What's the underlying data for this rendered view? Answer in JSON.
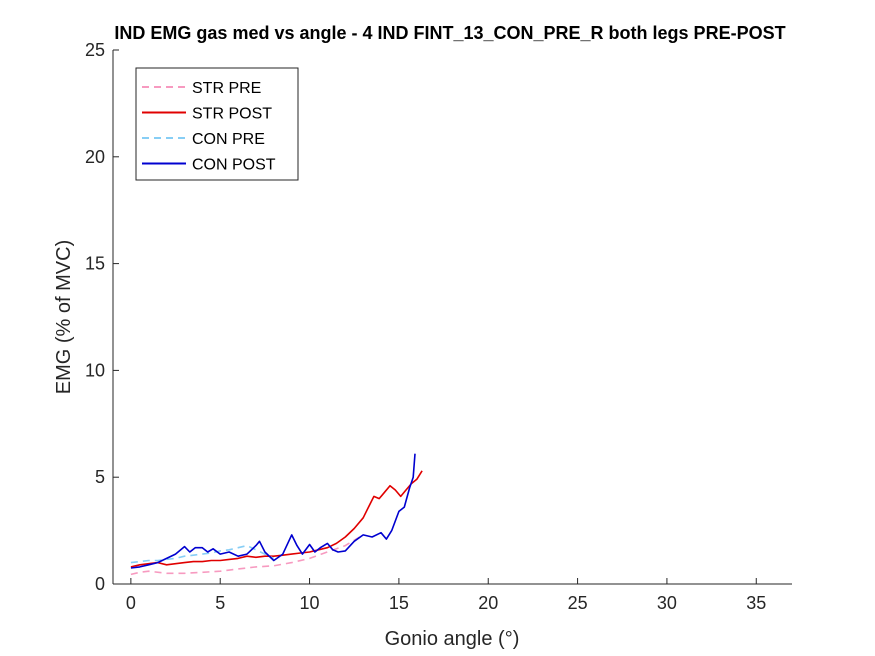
{
  "chart_data": {
    "type": "line",
    "title": "IND EMG gas med vs angle - 4 IND FINT_13_CON_PRE_R both legs PRE-POST",
    "xlabel": "Gonio angle (°)",
    "ylabel": "EMG (% of MVC)",
    "xlim": [
      -1,
      37
    ],
    "ylim": [
      0,
      25
    ],
    "xticks": [
      0,
      5,
      10,
      15,
      20,
      25,
      30,
      35
    ],
    "yticks": [
      0,
      5,
      10,
      15,
      20,
      25
    ],
    "xtick_labels": [
      "0",
      "5",
      "10",
      "15",
      "20",
      "25",
      "30",
      "35"
    ],
    "ytick_labels": [
      "0",
      "5",
      "10",
      "15",
      "20",
      "25"
    ],
    "grid": false,
    "legend_position": "top-left",
    "series": [
      {
        "name": "STR PRE",
        "color": "#f79ac0",
        "style": "dashed",
        "x": [
          0,
          0.5,
          1,
          2,
          3,
          4,
          5,
          6,
          7,
          8,
          9,
          10,
          11,
          12,
          12.8
        ],
        "y": [
          0.45,
          0.55,
          0.6,
          0.5,
          0.5,
          0.55,
          0.6,
          0.7,
          0.8,
          0.85,
          1.0,
          1.2,
          1.5,
          1.8,
          2.2
        ]
      },
      {
        "name": "STR POST",
        "color": "#e00000",
        "style": "solid",
        "x": [
          0,
          0.5,
          1,
          1.5,
          2,
          2.5,
          3,
          3.5,
          4,
          4.5,
          5,
          5.5,
          6,
          6.5,
          7,
          7.5,
          8,
          8.5,
          9,
          9.5,
          10,
          10.5,
          11,
          11.5,
          12,
          12.5,
          13,
          13.3,
          13.6,
          13.9,
          14.2,
          14.5,
          14.8,
          15.1,
          15.4,
          15.7,
          16.0,
          16.3
        ],
        "y": [
          0.8,
          0.9,
          0.95,
          1.0,
          0.9,
          0.95,
          1.0,
          1.05,
          1.05,
          1.1,
          1.1,
          1.15,
          1.2,
          1.3,
          1.25,
          1.3,
          1.3,
          1.35,
          1.4,
          1.45,
          1.5,
          1.6,
          1.7,
          1.9,
          2.2,
          2.6,
          3.1,
          3.6,
          4.1,
          4.0,
          4.3,
          4.6,
          4.4,
          4.1,
          4.4,
          4.7,
          4.9,
          5.3
        ]
      },
      {
        "name": "CON PRE",
        "color": "#87cef5",
        "style": "dashed",
        "x": [
          0,
          0.5,
          1,
          1.5,
          2,
          2.5,
          3,
          3.5,
          4,
          4.5,
          5,
          5.5,
          6,
          6.5,
          7,
          7.5,
          8
        ],
        "y": [
          1.0,
          1.05,
          1.1,
          1.1,
          1.15,
          1.2,
          1.3,
          1.35,
          1.4,
          1.45,
          1.55,
          1.6,
          1.7,
          1.8,
          1.6,
          1.4,
          1.2
        ]
      },
      {
        "name": "CON POST",
        "color": "#0000d0",
        "style": "solid",
        "x": [
          0,
          0.5,
          1,
          1.5,
          2,
          2.5,
          3,
          3.3,
          3.6,
          4,
          4.3,
          4.6,
          5,
          5.5,
          6,
          6.5,
          7,
          7.2,
          7.5,
          8,
          8.5,
          9,
          9.3,
          9.6,
          10,
          10.3,
          10.6,
          11,
          11.3,
          11.6,
          12,
          12.5,
          13,
          13.5,
          14,
          14.3,
          14.6,
          15,
          15.3,
          15.6,
          15.8,
          15.9
        ],
        "y": [
          0.75,
          0.8,
          0.9,
          1.0,
          1.2,
          1.4,
          1.75,
          1.5,
          1.7,
          1.7,
          1.5,
          1.65,
          1.4,
          1.5,
          1.3,
          1.4,
          1.8,
          2.0,
          1.5,
          1.1,
          1.4,
          2.3,
          1.8,
          1.4,
          1.85,
          1.5,
          1.7,
          1.9,
          1.6,
          1.5,
          1.55,
          2.0,
          2.3,
          2.2,
          2.4,
          2.1,
          2.5,
          3.4,
          3.6,
          4.5,
          5.0,
          6.1
        ]
      }
    ]
  }
}
